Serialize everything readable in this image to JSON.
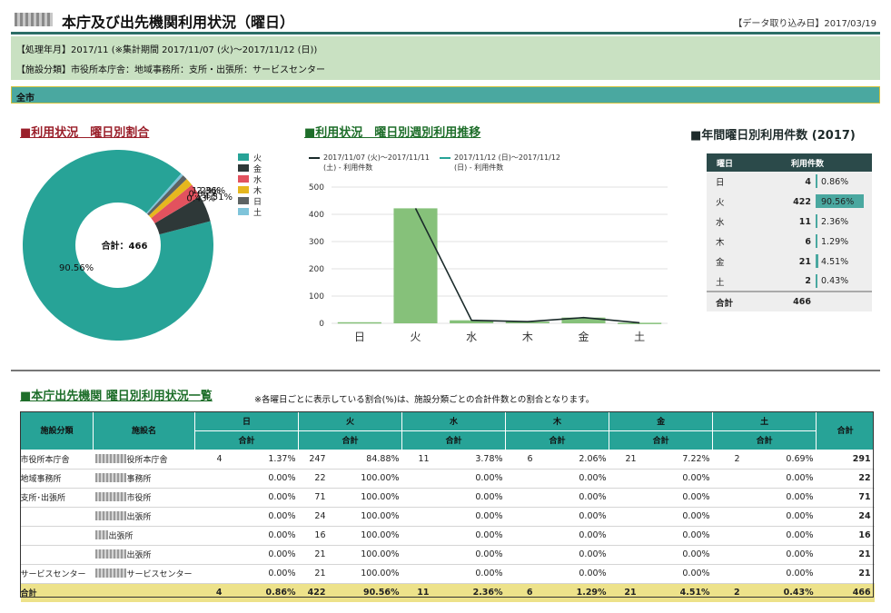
{
  "header": {
    "title": "本庁及び出先機関利用状況（曜日）",
    "data_date": "【データ取り込み日】2017/03/19"
  },
  "info": {
    "line1": "【処理年月】2017/11 (※集計期間 2017/11/07 (火)〜2017/11/12 (日))",
    "line2": "【施設分類】市役所本庁舎：地域事務所：支所・出張所：サービスセンター"
  },
  "scope_label": "全市",
  "sections": {
    "pie_title": "■利用状況　曜日別割合",
    "line_title": "■利用状況　曜日別週別利用推移",
    "yearly_title": "■年間曜日別利用件数 (2017)",
    "list_title": "■本庁出先機関 曜日別利用状況一覧",
    "list_note": "※各曜日ごとに表示している割合(%)は、施設分類ごとの合計件数との割合となります。"
  },
  "colors": {
    "teal": "#27a397",
    "accent_dark": "#2c6e66",
    "bar_green": "#86c17a",
    "line_dark": "#1a2a2a"
  },
  "chart_data": [
    {
      "type": "pie",
      "title": "利用状況　曜日別割合",
      "center_label": "合計：466",
      "slices": [
        {
          "label": "火",
          "value": 422,
          "pct_label": "90.56%",
          "color": "#27a397"
        },
        {
          "label": "金",
          "value": 21,
          "pct_label": "4.51%",
          "color": "#2e3838"
        },
        {
          "label": "水",
          "value": 11,
          "pct_label": "2.36%",
          "color": "#e2525e"
        },
        {
          "label": "木",
          "value": 6,
          "pct_label": "1.29%",
          "color": "#e6b71e"
        },
        {
          "label": "日",
          "value": 4,
          "pct_label": "0.86%",
          "color": "#5d6363"
        },
        {
          "label": "土",
          "value": 2,
          "pct_label": "0.43%",
          "color": "#7fc4da"
        }
      ]
    },
    {
      "type": "bar",
      "title": "利用状況　曜日別週別利用推移",
      "categories": [
        "日",
        "火",
        "水",
        "木",
        "金",
        "土"
      ],
      "ylim": [
        0,
        500
      ],
      "yticks": [
        0,
        100,
        200,
        300,
        400,
        500
      ],
      "series": [
        {
          "name": "2017/11/12 (日)〜2017/11/12 (日) - 利用件数",
          "kind": "bar",
          "values": [
            4,
            422,
            11,
            6,
            21,
            2
          ],
          "color": "#86c17a"
        },
        {
          "name": "2017/11/07 (火)〜2017/11/11 (土) - 利用件数",
          "kind": "line",
          "values": [
            null,
            422,
            11,
            6,
            21,
            2
          ],
          "color": "#1a2a2a"
        }
      ]
    },
    {
      "type": "table",
      "title": "年間曜日別利用件数 (2017)",
      "columns": [
        "曜日",
        "利用件数"
      ],
      "rows": [
        {
          "day": "日",
          "count": "4",
          "pct": "0.86%",
          "ratio": 0.0086
        },
        {
          "day": "火",
          "count": "422",
          "pct": "90.56%",
          "ratio": 0.9056
        },
        {
          "day": "水",
          "count": "11",
          "pct": "2.36%",
          "ratio": 0.0236
        },
        {
          "day": "木",
          "count": "6",
          "pct": "1.29%",
          "ratio": 0.0129
        },
        {
          "day": "金",
          "count": "21",
          "pct": "4.51%",
          "ratio": 0.0451
        },
        {
          "day": "土",
          "count": "2",
          "pct": "0.43%",
          "ratio": 0.0043
        }
      ],
      "total": {
        "label": "合計",
        "count": "466"
      }
    }
  ],
  "facility_table": {
    "headers": {
      "category": "施設分類",
      "facility": "施設名",
      "total": "合計",
      "sub": "合計"
    },
    "days": [
      "日",
      "火",
      "水",
      "木",
      "金",
      "土"
    ],
    "rows": [
      {
        "category": "市役所本庁舎",
        "facility": "役所本庁舎",
        "blur": "long",
        "cells": [
          [
            "4",
            "1.37%"
          ],
          [
            "247",
            "84.88%"
          ],
          [
            "11",
            "3.78%"
          ],
          [
            "6",
            "2.06%"
          ],
          [
            "21",
            "7.22%"
          ],
          [
            "2",
            "0.69%"
          ]
        ],
        "total": "291"
      },
      {
        "category": "地域事務所",
        "facility": "事務所",
        "blur": "long",
        "cells": [
          [
            "",
            "0.00%"
          ],
          [
            "22",
            "100.00%"
          ],
          [
            "",
            "0.00%"
          ],
          [
            "",
            "0.00%"
          ],
          [
            "",
            "0.00%"
          ],
          [
            "",
            "0.00%"
          ]
        ],
        "total": "22"
      },
      {
        "category": "支所･出張所",
        "facility": "市役所",
        "blur": "long",
        "cells": [
          [
            "",
            "0.00%"
          ],
          [
            "71",
            "100.00%"
          ],
          [
            "",
            "0.00%"
          ],
          [
            "",
            "0.00%"
          ],
          [
            "",
            "0.00%"
          ],
          [
            "",
            "0.00%"
          ]
        ],
        "total": "71"
      },
      {
        "category": "",
        "facility": "出張所",
        "blur": "long",
        "cells": [
          [
            "",
            "0.00%"
          ],
          [
            "24",
            "100.00%"
          ],
          [
            "",
            "0.00%"
          ],
          [
            "",
            "0.00%"
          ],
          [
            "",
            "0.00%"
          ],
          [
            "",
            "0.00%"
          ]
        ],
        "total": "24"
      },
      {
        "category": "",
        "facility": "出張所",
        "blur": "short",
        "cells": [
          [
            "",
            "0.00%"
          ],
          [
            "16",
            "100.00%"
          ],
          [
            "",
            "0.00%"
          ],
          [
            "",
            "0.00%"
          ],
          [
            "",
            "0.00%"
          ],
          [
            "",
            "0.00%"
          ]
        ],
        "total": "16"
      },
      {
        "category": "",
        "facility": "出張所",
        "blur": "long",
        "cells": [
          [
            "",
            "0.00%"
          ],
          [
            "21",
            "100.00%"
          ],
          [
            "",
            "0.00%"
          ],
          [
            "",
            "0.00%"
          ],
          [
            "",
            "0.00%"
          ],
          [
            "",
            "0.00%"
          ]
        ],
        "total": "21"
      },
      {
        "category": "サービスセンター",
        "facility": "サービスセンター",
        "blur": "long",
        "cells": [
          [
            "",
            "0.00%"
          ],
          [
            "21",
            "100.00%"
          ],
          [
            "",
            "0.00%"
          ],
          [
            "",
            "0.00%"
          ],
          [
            "",
            "0.00%"
          ],
          [
            "",
            "0.00%"
          ]
        ],
        "total": "21"
      }
    ],
    "sum_row": {
      "label": "合計",
      "cells": [
        [
          "4",
          "0.86%"
        ],
        [
          "422",
          "90.56%"
        ],
        [
          "11",
          "2.36%"
        ],
        [
          "6",
          "1.29%"
        ],
        [
          "21",
          "4.51%"
        ],
        [
          "2",
          "0.43%"
        ]
      ],
      "total": "466"
    }
  }
}
